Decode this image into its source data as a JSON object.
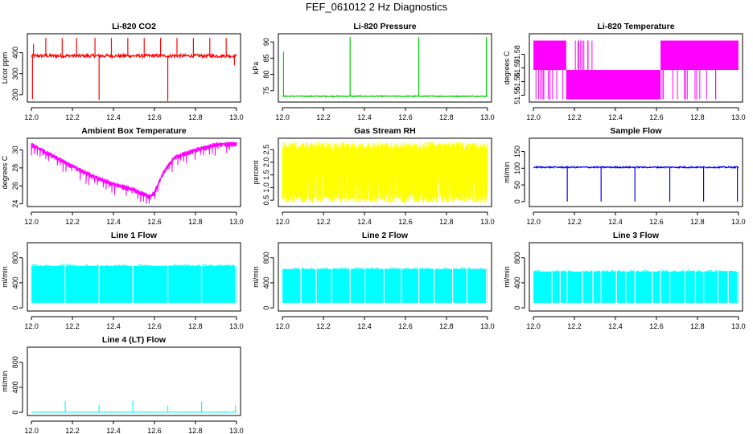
{
  "page_title": "FEF_061012  2 Hz Diagnostics",
  "chart_data": [
    {
      "type": "line",
      "title": "Li-820 CO2",
      "ylabel": "Licor ppm",
      "color": "#ff0000",
      "xlim": [
        11.98,
        13.02
      ],
      "ylim": [
        165,
        490
      ],
      "x_ticks": [
        12.0,
        12.2,
        12.4,
        12.6,
        12.8,
        13.0
      ],
      "x_tick_labels": [
        "12.0",
        "12.2",
        "12.4",
        "12.6",
        "12.8",
        "13.0"
      ],
      "y_ticks": [
        200,
        300,
        400
      ],
      "y_tick_labels": [
        "200",
        "300",
        "400"
      ],
      "baseline": 385,
      "noise": 8,
      "spikes": [
        {
          "x": 12.005,
          "y": 180
        },
        {
          "x": 12.01,
          "y": 440
        },
        {
          "x": 12.07,
          "y": 470
        },
        {
          "x": 12.15,
          "y": 470
        },
        {
          "x": 12.22,
          "y": 470
        },
        {
          "x": 12.31,
          "y": 470
        },
        {
          "x": 12.33,
          "y": 175
        },
        {
          "x": 12.39,
          "y": 470
        },
        {
          "x": 12.47,
          "y": 470
        },
        {
          "x": 12.55,
          "y": 470
        },
        {
          "x": 12.63,
          "y": 470
        },
        {
          "x": 12.665,
          "y": 170
        },
        {
          "x": 12.71,
          "y": 470
        },
        {
          "x": 12.79,
          "y": 470
        },
        {
          "x": 12.87,
          "y": 470
        },
        {
          "x": 12.95,
          "y": 470
        },
        {
          "x": 12.99,
          "y": 340
        }
      ]
    },
    {
      "type": "line",
      "title": "Li-820 Pressure",
      "ylabel": "kPa",
      "color": "#00cc00",
      "xlim": [
        11.98,
        13.02
      ],
      "ylim": [
        71.5,
        92.5
      ],
      "x_ticks": [
        12.0,
        12.2,
        12.4,
        12.6,
        12.8,
        13.0
      ],
      "x_tick_labels": [
        "12.0",
        "12.2",
        "12.4",
        "12.6",
        "12.8",
        "13.0"
      ],
      "y_ticks": [
        75,
        80,
        85,
        90
      ],
      "y_tick_labels": [
        "75",
        "80",
        "85",
        "90"
      ],
      "baseline": 73.3,
      "noise": 0.15,
      "spikes": [
        {
          "x": 12.005,
          "y": 87
        },
        {
          "x": 12.33,
          "y": 91.5
        },
        {
          "x": 12.665,
          "y": 91.5
        },
        {
          "x": 12.995,
          "y": 91.5
        }
      ]
    },
    {
      "type": "line",
      "title": "Li-820 Temperature",
      "ylabel": "degrees C",
      "color": "#ff00ff",
      "xlim": [
        11.98,
        13.02
      ],
      "ylim": [
        51.545,
        51.595
      ],
      "x_ticks": [
        12.0,
        12.2,
        12.4,
        12.6,
        12.8,
        13.0
      ],
      "x_tick_labels": [
        "12.0",
        "12.2",
        "12.4",
        "12.6",
        "12.8",
        "13.0"
      ],
      "y_ticks": [
        51.55,
        51.56,
        51.57,
        51.58
      ],
      "y_tick_labels": [
        "51.55",
        "51.56",
        "51.57",
        "51.58"
      ],
      "levels": [
        51.547,
        51.5685,
        51.59
      ],
      "segments": [
        {
          "x0": 12.0,
          "x1": 12.16,
          "low": 51.5685,
          "high": 51.59
        },
        {
          "x0": 12.16,
          "x1": 12.62,
          "low": 51.547,
          "high": 51.5685
        },
        {
          "x0": 12.62,
          "x1": 13.0,
          "low": 51.5685,
          "high": 51.59
        }
      ]
    },
    {
      "type": "line",
      "title": "Ambient Box Temperature",
      "ylabel": "degrees C",
      "color": "#ff00ff",
      "xlim": [
        11.98,
        13.02
      ],
      "ylim": [
        23.7,
        31.3
      ],
      "x_ticks": [
        12.0,
        12.2,
        12.4,
        12.6,
        12.8,
        13.0
      ],
      "x_tick_labels": [
        "12.0",
        "12.2",
        "12.4",
        "12.6",
        "12.8",
        "13.0"
      ],
      "y_ticks": [
        24,
        26,
        28,
        30
      ],
      "y_tick_labels": [
        "24",
        "26",
        "28",
        "30"
      ],
      "envelope_x": [
        12.0,
        12.1,
        12.2,
        12.3,
        12.4,
        12.5,
        12.58,
        12.6,
        12.65,
        12.7,
        12.8,
        12.9,
        13.0
      ],
      "envelope_y": [
        30.6,
        29.4,
        28.2,
        27.1,
        26.2,
        25.6,
        24.8,
        25.3,
        27.8,
        29.2,
        30.0,
        30.6,
        30.7
      ]
    },
    {
      "type": "line",
      "title": "Gas Stream RH",
      "ylabel": "percent",
      "color": "#ffff00",
      "xlim": [
        11.98,
        13.02
      ],
      "ylim": [
        0.25,
        2.95
      ],
      "x_ticks": [
        12.0,
        12.2,
        12.4,
        12.6,
        12.8,
        13.0
      ],
      "x_tick_labels": [
        "12.0",
        "12.2",
        "12.4",
        "12.6",
        "12.8",
        "13.0"
      ],
      "y_ticks": [
        0.5,
        1.0,
        1.5,
        2.0,
        2.5
      ],
      "y_tick_labels": [
        "0.5",
        "1.0",
        "1.5",
        "2.0",
        "2.5"
      ],
      "min": 0.4,
      "max": 2.8
    },
    {
      "type": "line",
      "title": "Sample Flow",
      "ylabel": "ml/min",
      "color": "#0000ff",
      "xlim": [
        11.98,
        13.02
      ],
      "ylim": [
        -15,
        190
      ],
      "x_ticks": [
        12.0,
        12.2,
        12.4,
        12.6,
        12.8,
        13.0
      ],
      "x_tick_labels": [
        "12.0",
        "12.2",
        "12.4",
        "12.6",
        "12.8",
        "13.0"
      ],
      "y_ticks": [
        0,
        50,
        100,
        150
      ],
      "y_tick_labels": [
        "0",
        "50",
        "100",
        "150"
      ],
      "baseline": 103,
      "noise": 2,
      "spikes": [
        {
          "x": 12.165,
          "y": 0
        },
        {
          "x": 12.33,
          "y": 0
        },
        {
          "x": 12.495,
          "y": 0
        },
        {
          "x": 12.665,
          "y": 0
        },
        {
          "x": 12.83,
          "y": 0
        },
        {
          "x": 12.995,
          "y": 0
        }
      ]
    },
    {
      "type": "area",
      "title": "Line 1 Flow",
      "ylabel": "ml/min",
      "color": "#00ffff",
      "xlim": [
        11.98,
        13.02
      ],
      "ylim": [
        -50,
        1040
      ],
      "x_ticks": [
        12.0,
        12.2,
        12.4,
        12.6,
        12.8,
        13.0
      ],
      "x_tick_labels": [
        "12.0",
        "12.2",
        "12.4",
        "12.6",
        "12.8",
        "13.0"
      ],
      "y_ticks": [
        0,
        400,
        800
      ],
      "y_tick_labels": [
        "0",
        "400",
        "800"
      ],
      "band_low": 80,
      "band_high": 670,
      "gaps": [
        12.165,
        12.33,
        12.495,
        12.665,
        12.83,
        12.995
      ]
    },
    {
      "type": "area",
      "title": "Line 2 Flow",
      "ylabel": "ml/min",
      "color": "#00ffff",
      "xlim": [
        11.98,
        13.02
      ],
      "ylim": [
        -50,
        1040
      ],
      "x_ticks": [
        12.0,
        12.2,
        12.4,
        12.6,
        12.8,
        13.0
      ],
      "x_tick_labels": [
        "12.0",
        "12.2",
        "12.4",
        "12.6",
        "12.8",
        "13.0"
      ],
      "y_ticks": [
        0,
        400,
        800
      ],
      "y_tick_labels": [
        "0",
        "400",
        "800"
      ],
      "band_low": 80,
      "band_high": 620,
      "gaps": [
        12.09,
        12.165,
        12.24,
        12.33,
        12.405,
        12.495,
        12.58,
        12.665,
        12.74,
        12.83,
        12.9,
        12.995
      ]
    },
    {
      "type": "area",
      "title": "Line 3 Flow",
      "ylabel": "ml/min",
      "color": "#00ffff",
      "xlim": [
        11.98,
        13.02
      ],
      "ylim": [
        -50,
        1040
      ],
      "x_ticks": [
        12.0,
        12.2,
        12.4,
        12.6,
        12.8,
        13.0
      ],
      "x_tick_labels": [
        "12.0",
        "12.2",
        "12.4",
        "12.6",
        "12.8",
        "13.0"
      ],
      "y_ticks": [
        0,
        400,
        800
      ],
      "y_tick_labels": [
        "0",
        "400",
        "800"
      ],
      "band_low": 80,
      "band_high": 580,
      "gaps": [
        12.09,
        12.13,
        12.165,
        12.24,
        12.29,
        12.33,
        12.405,
        12.45,
        12.495,
        12.58,
        12.62,
        12.665,
        12.74,
        12.79,
        12.83,
        12.9,
        12.95,
        12.995
      ]
    },
    {
      "type": "line",
      "title": "Line 4 (LT) Flow",
      "ylabel": "ml/min",
      "color": "#00ffff",
      "xlim": [
        11.98,
        13.02
      ],
      "ylim": [
        -50,
        1040
      ],
      "x_ticks": [
        12.0,
        12.2,
        12.4,
        12.6,
        12.8,
        13.0
      ],
      "x_tick_labels": [
        "12.0",
        "12.2",
        "12.4",
        "12.6",
        "12.8",
        "13.0"
      ],
      "y_ticks": [
        0,
        400,
        800
      ],
      "y_tick_labels": [
        "0",
        "400",
        "800"
      ],
      "baseline": 5,
      "noise": 2,
      "spikes": [
        {
          "x": 12.165,
          "y": 180
        },
        {
          "x": 12.33,
          "y": 120
        },
        {
          "x": 12.495,
          "y": 190
        },
        {
          "x": 12.665,
          "y": 110
        },
        {
          "x": 12.83,
          "y": 170
        },
        {
          "x": 12.995,
          "y": 110
        }
      ]
    }
  ]
}
